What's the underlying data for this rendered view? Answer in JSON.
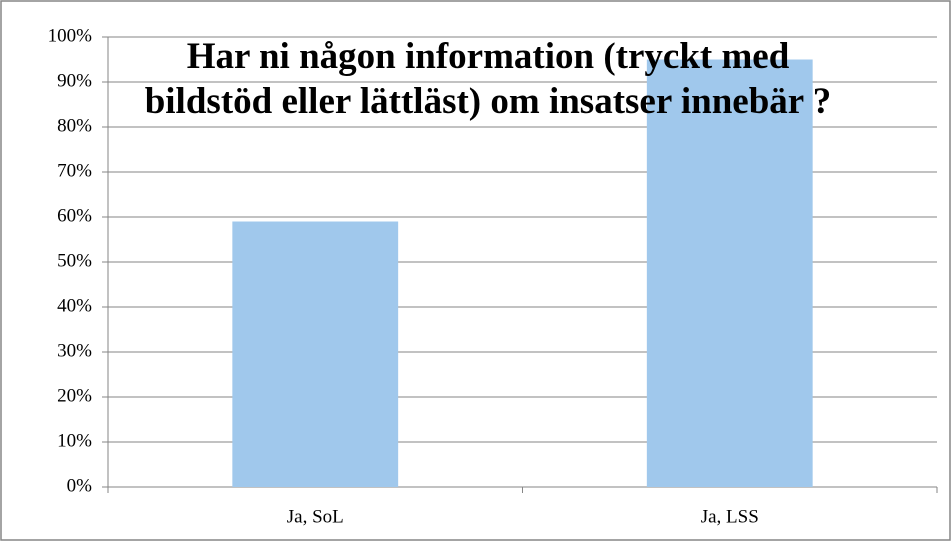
{
  "chart_data": {
    "type": "bar",
    "title": "Har ni någon information (tryckt med bildstöd eller lättläst) om insatser innebär ?",
    "categories": [
      "Ja, SoL",
      "Ja, LSS"
    ],
    "values": [
      59,
      95
    ],
    "color": "#a0c8ec",
    "ylim": [
      0,
      100
    ],
    "yticks": [
      {
        "value": 0,
        "label": "0%"
      },
      {
        "value": 10,
        "label": "10%"
      },
      {
        "value": 20,
        "label": "20%"
      },
      {
        "value": 30,
        "label": "30%"
      },
      {
        "value": 40,
        "label": "40%"
      },
      {
        "value": 50,
        "label": "50%"
      },
      {
        "value": 60,
        "label": "60%"
      },
      {
        "value": 70,
        "label": "70%"
      },
      {
        "value": 80,
        "label": "80%"
      },
      {
        "value": 90,
        "label": "90%"
      },
      {
        "value": 100,
        "label": "100%"
      }
    ],
    "grid": true
  }
}
